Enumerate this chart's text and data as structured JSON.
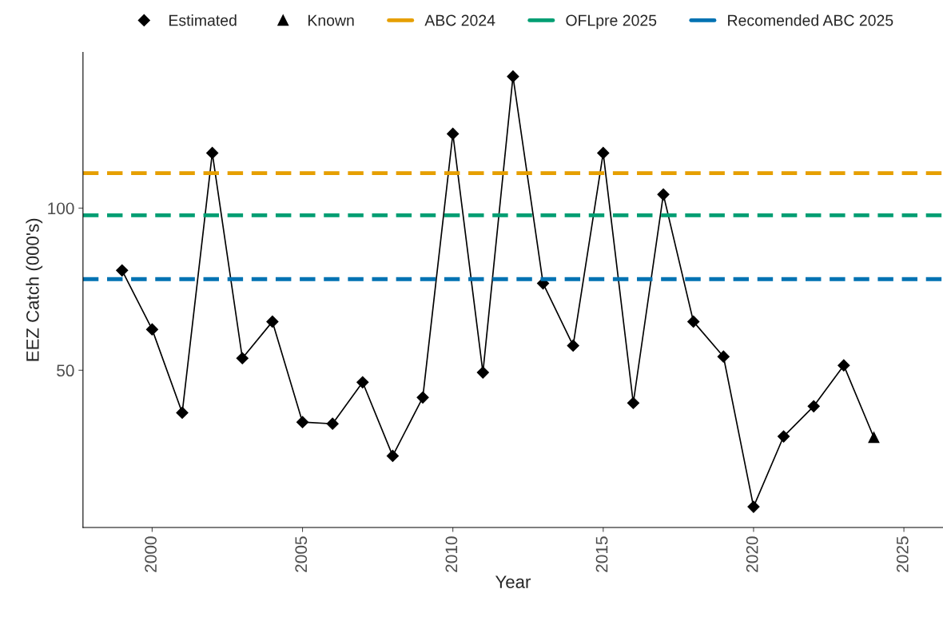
{
  "chart_data": {
    "type": "line",
    "xlabel": "Year",
    "ylabel": "EEZ Catch (000's)",
    "xlim": [
      1997.7,
      2026.3
    ],
    "xticks": [
      2000,
      2005,
      2010,
      2015,
      2020,
      2025
    ],
    "ylim": [
      1.5,
      148
    ],
    "yticks": [
      50,
      100
    ],
    "grid": false,
    "legend": "top",
    "series": [
      {
        "color": "#000000",
        "marker": "none",
        "x": [
          1999,
          2000,
          2001,
          2002,
          2003,
          2004,
          2005,
          2006,
          2007,
          2008,
          2009,
          2010,
          2011,
          2012,
          2013,
          2014,
          2015,
          2016,
          2017,
          2018,
          2019,
          2020,
          2021,
          2022,
          2023,
          2024
        ],
        "values": [
          80.8,
          62.6,
          36.9,
          117,
          53.7,
          65,
          34,
          33.5,
          46.3,
          23.6,
          41.6,
          122.9,
          49.3,
          140.6,
          76.8,
          57.6,
          117,
          39.9,
          104.2,
          65,
          54.2,
          7.9,
          29.6,
          38.9,
          51.5,
          29.3
        ]
      },
      {
        "type": "scatter",
        "name": "Estimated",
        "color": "#000000",
        "marker": "diamond",
        "x": [
          1999,
          2000,
          2001,
          2002,
          2003,
          2004,
          2005,
          2006,
          2007,
          2008,
          2009,
          2010,
          2011,
          2012,
          2013,
          2014,
          2015,
          2016,
          2017,
          2018,
          2019,
          2020,
          2021,
          2022,
          2023
        ],
        "values": [
          80.8,
          62.6,
          36.9,
          117,
          53.7,
          65,
          34,
          33.5,
          46.3,
          23.6,
          41.6,
          122.9,
          49.3,
          140.6,
          76.8,
          57.6,
          117,
          39.9,
          104.2,
          65,
          54.2,
          7.9,
          29.6,
          38.9,
          51.5
        ]
      },
      {
        "type": "scatter",
        "name": "Known",
        "color": "#000000",
        "marker": "triangle",
        "x": [
          2024
        ],
        "values": [
          29.3
        ]
      }
    ],
    "ref_lines": [
      {
        "axis": "y",
        "value": 110.8,
        "label": "ABC 2024",
        "color": "#e69f00",
        "line_style": "dashed"
      },
      {
        "axis": "y",
        "value": 97.8,
        "label": "OFLpre 2025",
        "color": "#009e73",
        "line_style": "dashed"
      },
      {
        "axis": "y",
        "value": 78.1,
        "label": "Recomended ABC 2025",
        "color": "#0072b2",
        "line_style": "dashed"
      }
    ]
  }
}
